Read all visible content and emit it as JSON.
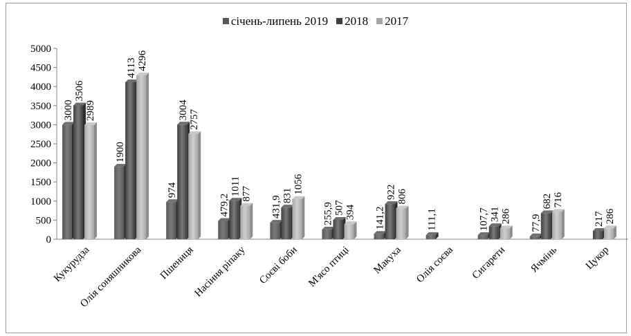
{
  "chart_data": {
    "type": "bar",
    "categories": [
      "Кукурудза",
      "Олія соняшникова",
      "Пшениця",
      "Насіння ріпаку",
      "Соєві боби",
      "М'ясо птиці",
      "Макуха",
      "Олія соєва",
      "Сигарети",
      "Ячмінь",
      "Цукор"
    ],
    "series": [
      {
        "name": "січень-липень 2019",
        "color": "#585858",
        "values": [
          3000,
          1900,
          974,
          479.2,
          431.9,
          255.9,
          141.2,
          111.1,
          107.7,
          77.9,
          null
        ],
        "labels": [
          "3000",
          "1900",
          "974",
          "479,2",
          "431,9",
          "255,9",
          "141,2",
          "111,1",
          "107,7",
          "77,9",
          ""
        ]
      },
      {
        "name": "2018",
        "color": "#3f3f3f",
        "values": [
          3506,
          4113,
          3004,
          1011,
          831,
          507,
          922,
          null,
          341,
          682,
          217
        ],
        "labels": [
          "3506",
          "4113",
          "3004",
          "1011",
          "831",
          "507",
          "922",
          "",
          "341",
          "682",
          "217"
        ]
      },
      {
        "name": "2017",
        "color": "#a6a6a6",
        "values": [
          2989,
          4296,
          2757,
          877,
          1056,
          394,
          806,
          null,
          286,
          716,
          286
        ],
        "labels": [
          "2989",
          "4296",
          "2757",
          "877",
          "1056",
          "394",
          "806",
          "",
          "286",
          "716",
          "286"
        ]
      }
    ],
    "ylim": [
      0,
      5000
    ],
    "yticks": [
      0,
      500,
      1000,
      1500,
      2000,
      2500,
      3000,
      3500,
      4000,
      4500,
      5000
    ],
    "grid": false,
    "legend_position": "top"
  }
}
